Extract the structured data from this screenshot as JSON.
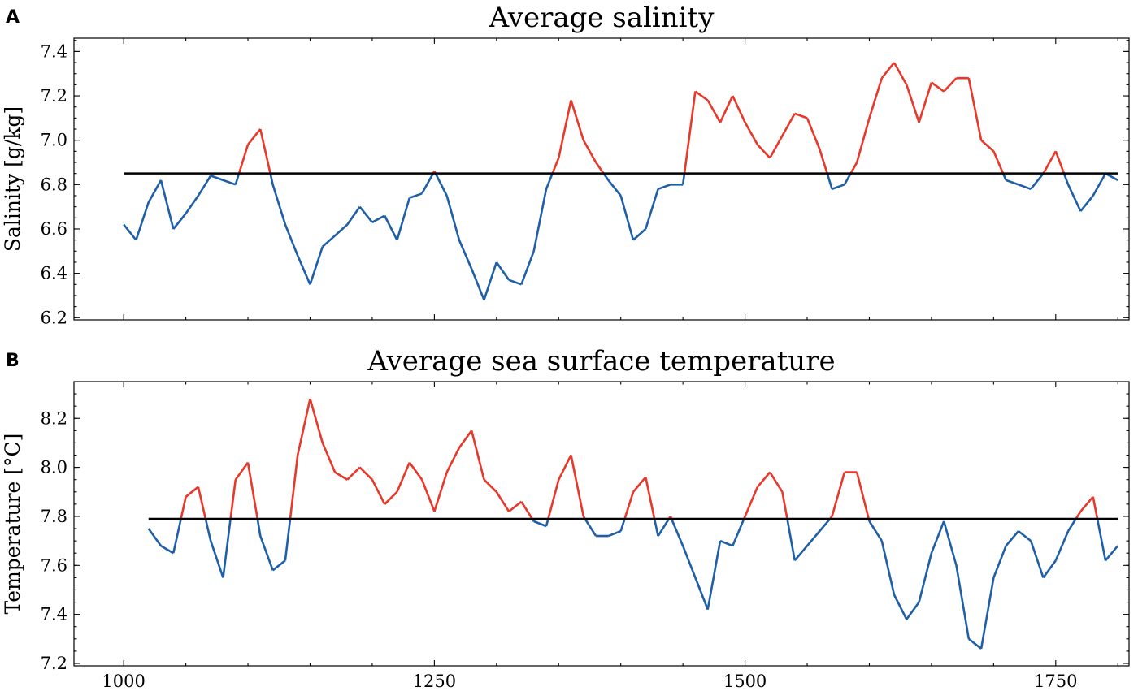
{
  "figure": {
    "panels": [
      {
        "letter": "A"
      },
      {
        "letter": "B"
      }
    ]
  },
  "chart_data": [
    {
      "type": "line",
      "title": "Average salinity",
      "xlabel": "",
      "ylabel": "Salinity [g/kg]",
      "xlim": [
        960,
        1809
      ],
      "ylim": [
        6.19,
        7.46
      ],
      "yticks": [
        6.2,
        6.4,
        6.6,
        6.8,
        7.0,
        7.2,
        7.4
      ],
      "ytick_labels": [
        "6.2",
        "6.4",
        "6.6",
        "6.8",
        "7.0",
        "7.2",
        "7.4"
      ],
      "xticks": [
        1000,
        1250,
        1500,
        1750
      ],
      "xtick_labels": [
        "",
        "",
        "",
        ""
      ],
      "reference_line": 6.85,
      "colors": {
        "above": "#e8382a",
        "below": "#1f5fa8",
        "reference": "#000000"
      },
      "x": [
        1000,
        1010,
        1020,
        1030,
        1040,
        1050,
        1060,
        1070,
        1080,
        1090,
        1100,
        1110,
        1120,
        1130,
        1140,
        1150,
        1160,
        1170,
        1180,
        1190,
        1200,
        1210,
        1220,
        1230,
        1240,
        1250,
        1260,
        1270,
        1280,
        1290,
        1300,
        1310,
        1320,
        1330,
        1340,
        1350,
        1360,
        1370,
        1380,
        1390,
        1400,
        1410,
        1420,
        1430,
        1440,
        1450,
        1460,
        1470,
        1480,
        1490,
        1500,
        1510,
        1520,
        1530,
        1540,
        1550,
        1560,
        1570,
        1580,
        1590,
        1600,
        1610,
        1620,
        1630,
        1640,
        1650,
        1660,
        1670,
        1680,
        1690,
        1700,
        1710,
        1720,
        1730,
        1740,
        1750,
        1760,
        1770,
        1780,
        1790,
        1800
      ],
      "y": [
        6.62,
        6.55,
        6.72,
        6.82,
        6.6,
        6.67,
        6.75,
        6.84,
        6.82,
        6.8,
        6.98,
        7.05,
        6.8,
        6.62,
        6.48,
        6.35,
        6.52,
        6.57,
        6.62,
        6.7,
        6.63,
        6.66,
        6.55,
        6.74,
        6.76,
        6.86,
        6.75,
        6.55,
        6.42,
        6.28,
        6.45,
        6.37,
        6.35,
        6.5,
        6.78,
        6.92,
        7.18,
        7.0,
        6.9,
        6.82,
        6.75,
        6.55,
        6.6,
        6.78,
        6.8,
        6.8,
        7.22,
        7.18,
        7.08,
        7.2,
        7.08,
        6.98,
        6.92,
        7.02,
        7.12,
        7.1,
        6.96,
        6.78,
        6.8,
        6.9,
        7.1,
        7.28,
        7.35,
        7.25,
        7.08,
        7.26,
        7.22,
        7.28,
        7.28,
        7.0,
        6.95,
        6.82,
        6.8,
        6.78,
        6.85,
        6.95,
        6.8,
        6.68,
        6.75,
        6.85,
        6.82
      ]
    },
    {
      "type": "line",
      "title": "Average sea surface temperature",
      "xlabel": "",
      "ylabel": "Temperature [°C]",
      "xlim": [
        960,
        1809
      ],
      "ylim": [
        7.19,
        8.35
      ],
      "yticks": [
        7.2,
        7.4,
        7.6,
        7.8,
        8.0,
        8.2
      ],
      "ytick_labels": [
        "7.2",
        "7.4",
        "7.6",
        "7.8",
        "8.0",
        "8.2"
      ],
      "xticks": [
        1000,
        1250,
        1500,
        1750
      ],
      "xtick_labels": [
        "1000",
        "1250",
        "1500",
        "1750"
      ],
      "reference_line": 7.79,
      "colors": {
        "above": "#e8382a",
        "below": "#1f5fa8",
        "reference": "#000000"
      },
      "x": [
        1020,
        1030,
        1040,
        1050,
        1060,
        1070,
        1080,
        1090,
        1100,
        1110,
        1120,
        1130,
        1140,
        1150,
        1160,
        1170,
        1180,
        1190,
        1200,
        1210,
        1220,
        1230,
        1240,
        1250,
        1260,
        1270,
        1280,
        1290,
        1300,
        1310,
        1320,
        1330,
        1340,
        1350,
        1360,
        1370,
        1380,
        1390,
        1400,
        1410,
        1420,
        1430,
        1440,
        1450,
        1460,
        1470,
        1480,
        1490,
        1500,
        1510,
        1520,
        1530,
        1540,
        1550,
        1560,
        1570,
        1580,
        1590,
        1600,
        1610,
        1620,
        1630,
        1640,
        1650,
        1660,
        1670,
        1680,
        1690,
        1700,
        1710,
        1720,
        1730,
        1740,
        1750,
        1760,
        1770,
        1780,
        1790,
        1800
      ],
      "y": [
        7.75,
        7.68,
        7.65,
        7.88,
        7.92,
        7.7,
        7.55,
        7.95,
        8.02,
        7.72,
        7.58,
        7.62,
        8.05,
        8.28,
        8.1,
        7.98,
        7.95,
        8.0,
        7.95,
        7.85,
        7.9,
        8.02,
        7.95,
        7.82,
        7.98,
        8.08,
        8.15,
        7.95,
        7.9,
        7.82,
        7.86,
        7.78,
        7.76,
        7.95,
        8.05,
        7.8,
        7.72,
        7.72,
        7.74,
        7.9,
        7.96,
        7.72,
        7.8,
        7.68,
        7.55,
        7.42,
        7.7,
        7.68,
        7.8,
        7.92,
        7.98,
        7.9,
        7.62,
        7.68,
        7.74,
        7.8,
        7.98,
        7.98,
        7.78,
        7.7,
        7.48,
        7.38,
        7.45,
        7.65,
        7.78,
        7.6,
        7.3,
        7.26,
        7.55,
        7.68,
        7.74,
        7.7,
        7.55,
        7.62,
        7.74,
        7.82,
        7.88,
        7.62,
        7.68
      ]
    }
  ]
}
